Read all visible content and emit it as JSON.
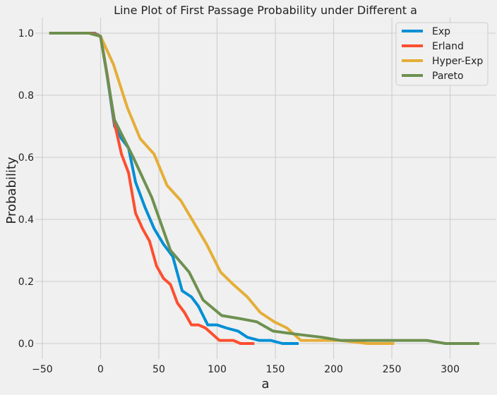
{
  "chart_data": {
    "type": "line",
    "title": "Line Plot of First Passage Probability under Different a",
    "xlabel": "a",
    "ylabel": "Probability",
    "xlim": [
      -56,
      339
    ],
    "ylim": [
      -0.05,
      1.05
    ],
    "xticks": [
      -50,
      0,
      50,
      100,
      150,
      200,
      250,
      300
    ],
    "xtick_labels": [
      "−50",
      "0",
      "50",
      "100",
      "150",
      "200",
      "250",
      "300"
    ],
    "yticks": [
      0.0,
      0.2,
      0.4,
      0.6,
      0.8,
      1.0
    ],
    "ytick_labels": [
      "0.0",
      "0.2",
      "0.4",
      "0.6",
      "0.8",
      "1.0"
    ],
    "grid": true,
    "legend_position": "top-right",
    "series": [
      {
        "name": "Exp",
        "color": "#008fd5",
        "x": [
          -44,
          -20,
          -5,
          0,
          5,
          12,
          18,
          24,
          30,
          38,
          46,
          54,
          62,
          70,
          78,
          84,
          92,
          100,
          108,
          118,
          126,
          136,
          146,
          156,
          170
        ],
        "y": [
          1.0,
          1.0,
          1.0,
          0.99,
          0.88,
          0.7,
          0.66,
          0.63,
          0.52,
          0.44,
          0.37,
          0.32,
          0.28,
          0.17,
          0.15,
          0.12,
          0.06,
          0.06,
          0.05,
          0.04,
          0.02,
          0.01,
          0.01,
          0.0,
          0.0
        ]
      },
      {
        "name": "Erland",
        "color": "#fc4f30",
        "x": [
          -44,
          -15,
          -7,
          -3,
          0,
          6,
          12,
          18,
          24,
          30,
          36,
          42,
          48,
          54,
          60,
          66,
          72,
          78,
          84,
          90,
          96,
          102,
          114,
          120,
          132
        ],
        "y": [
          1.0,
          1.0,
          1.0,
          0.995,
          0.99,
          0.86,
          0.71,
          0.61,
          0.55,
          0.42,
          0.37,
          0.33,
          0.25,
          0.21,
          0.19,
          0.13,
          0.1,
          0.06,
          0.06,
          0.05,
          0.03,
          0.01,
          0.01,
          0.0,
          0.0
        ]
      },
      {
        "name": "Hyper-Exp",
        "color": "#e5ae38",
        "x": [
          -44,
          -20,
          -10,
          0,
          11,
          23,
          34,
          46,
          57,
          69,
          80,
          91,
          103,
          114,
          126,
          137,
          149,
          160,
          172,
          206,
          229,
          252
        ],
        "y": [
          1.0,
          1.0,
          1.0,
          0.99,
          0.9,
          0.76,
          0.66,
          0.61,
          0.51,
          0.46,
          0.39,
          0.32,
          0.23,
          0.19,
          0.15,
          0.1,
          0.07,
          0.05,
          0.01,
          0.01,
          0.0,
          0.0
        ]
      },
      {
        "name": "Pareto",
        "color": "#6d904f",
        "x": [
          -44,
          -20,
          -10,
          0,
          12,
          28,
          44,
          60,
          76,
          88,
          104,
          120,
          134,
          148,
          168,
          190,
          206,
          220,
          280,
          296,
          325
        ],
        "y": [
          1.0,
          1.0,
          1.0,
          0.99,
          0.72,
          0.6,
          0.47,
          0.3,
          0.23,
          0.14,
          0.09,
          0.08,
          0.07,
          0.04,
          0.03,
          0.02,
          0.01,
          0.01,
          0.01,
          0.0,
          0.0
        ]
      }
    ]
  }
}
